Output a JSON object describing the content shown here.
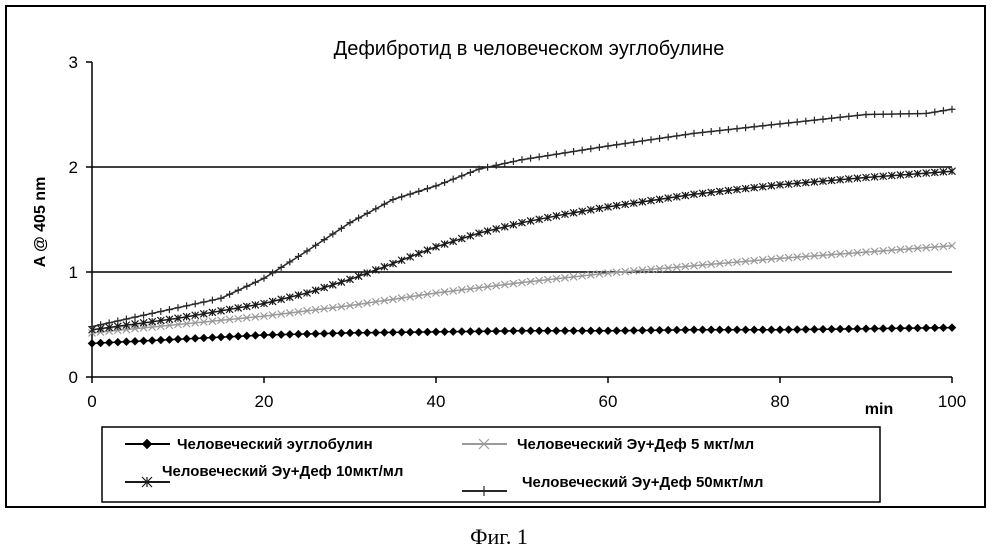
{
  "caption": "Фиг. 1",
  "chart_data": {
    "type": "line",
    "title": "Дефибротид в человеческом эуглобулине",
    "xlabel": "min",
    "ylabel": "A @ 405 nm",
    "xlim": [
      0,
      100
    ],
    "ylim": [
      0,
      3
    ],
    "x_ticks": [
      0,
      20,
      40,
      60,
      80,
      100
    ],
    "y_ticks": [
      0,
      1,
      2,
      3
    ],
    "grid": "horizontal lines at y=1, y=2",
    "legend_position": "bottom",
    "series": [
      {
        "name": "Человеческий эуглобулин",
        "color": "#000000",
        "marker": "diamond",
        "points": [
          [
            0,
            0.32
          ],
          [
            10,
            0.36
          ],
          [
            20,
            0.4
          ],
          [
            30,
            0.42
          ],
          [
            40,
            0.43
          ],
          [
            50,
            0.44
          ],
          [
            60,
            0.44
          ],
          [
            70,
            0.45
          ],
          [
            80,
            0.45
          ],
          [
            90,
            0.46
          ],
          [
            100,
            0.47
          ]
        ]
      },
      {
        "name": "Человеческий Эу+Деф 5 мкт/мл",
        "color": "#9a9a9a",
        "marker": "x",
        "points": [
          [
            0,
            0.42
          ],
          [
            10,
            0.5
          ],
          [
            20,
            0.58
          ],
          [
            30,
            0.68
          ],
          [
            40,
            0.8
          ],
          [
            50,
            0.9
          ],
          [
            60,
            0.99
          ],
          [
            70,
            1.06
          ],
          [
            80,
            1.13
          ],
          [
            90,
            1.19
          ],
          [
            100,
            1.25
          ]
        ]
      },
      {
        "name": "Человеческий Эу+Деф 10мкт/мл",
        "color": "#1a1a1a",
        "marker": "asterisk",
        "points": [
          [
            0,
            0.45
          ],
          [
            10,
            0.56
          ],
          [
            20,
            0.7
          ],
          [
            25,
            0.8
          ],
          [
            30,
            0.93
          ],
          [
            35,
            1.08
          ],
          [
            40,
            1.24
          ],
          [
            45,
            1.37
          ],
          [
            50,
            1.47
          ],
          [
            55,
            1.55
          ],
          [
            60,
            1.62
          ],
          [
            70,
            1.74
          ],
          [
            80,
            1.83
          ],
          [
            90,
            1.9
          ],
          [
            100,
            1.96
          ]
        ]
      },
      {
        "name": "Человеческий Эу+Деф 50мкт/мл",
        "color": "#2a2a2a",
        "marker": "plus",
        "points": [
          [
            0,
            0.48
          ],
          [
            10,
            0.66
          ],
          [
            15,
            0.75
          ],
          [
            20,
            0.94
          ],
          [
            25,
            1.2
          ],
          [
            30,
            1.47
          ],
          [
            35,
            1.69
          ],
          [
            40,
            1.82
          ],
          [
            45,
            1.98
          ],
          [
            50,
            2.07
          ],
          [
            60,
            2.2
          ],
          [
            70,
            2.32
          ],
          [
            80,
            2.41
          ],
          [
            90,
            2.5
          ],
          [
            97,
            2.51
          ],
          [
            100,
            2.55
          ]
        ]
      }
    ]
  }
}
